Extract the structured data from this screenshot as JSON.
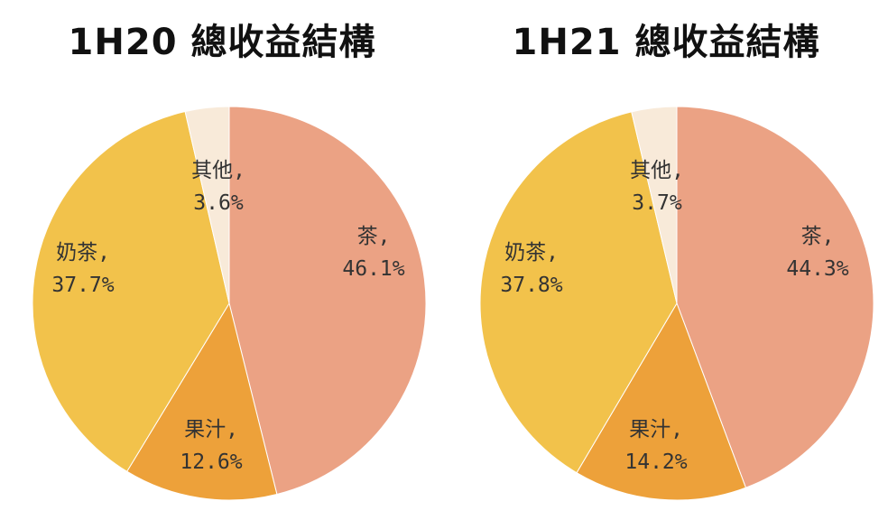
{
  "chart_data": [
    {
      "type": "pie",
      "title": "1H20 總收益結構",
      "slices": [
        {
          "name": "茶",
          "label": "茶,",
          "value": 46.1,
          "display": "46.1%",
          "color": "#EBA284"
        },
        {
          "name": "果汁",
          "label": "果汁,",
          "value": 12.6,
          "display": "12.6%",
          "color": "#EDA13A"
        },
        {
          "name": "奶茶",
          "label": "奶茶,",
          "value": 37.7,
          "display": "37.7%",
          "color": "#F2C24B"
        },
        {
          "name": "其他",
          "label": "其他,",
          "value": 3.6,
          "display": "3.6%",
          "color": "#F8EAD9"
        }
      ]
    },
    {
      "type": "pie",
      "title": "1H21 總收益結構",
      "slices": [
        {
          "name": "茶",
          "label": "茶,",
          "value": 44.3,
          "display": "44.3%",
          "color": "#EBA284"
        },
        {
          "name": "果汁",
          "label": "果汁,",
          "value": 14.2,
          "display": "14.2%",
          "color": "#EDA13A"
        },
        {
          "name": "奶茶",
          "label": "奶茶,",
          "value": 37.8,
          "display": "37.8%",
          "color": "#F2C24B"
        },
        {
          "name": "其他",
          "label": "其他,",
          "value": 3.7,
          "display": "3.7%",
          "color": "#F8EAD9"
        }
      ]
    }
  ]
}
